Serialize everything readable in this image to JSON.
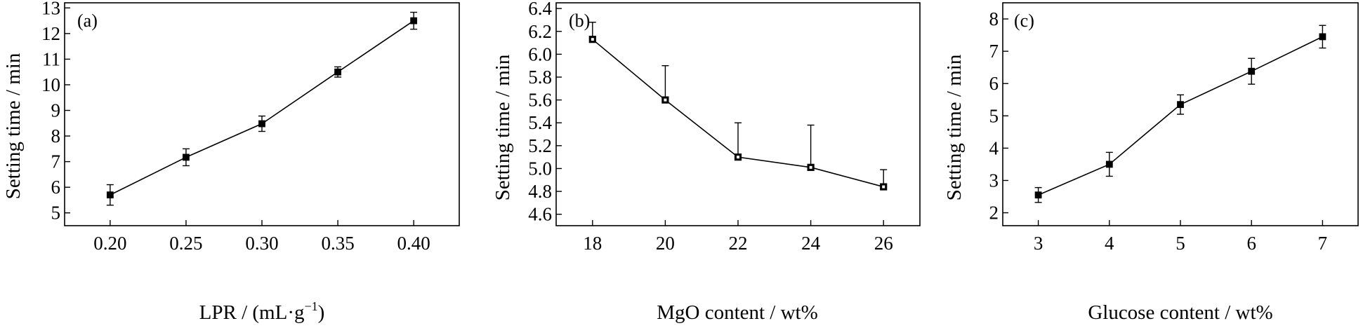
{
  "chart_data": [
    {
      "type": "line",
      "panel_label": "(a)",
      "xlabel": "LPR / (mL·g",
      "xlabel_sup": "−1",
      "xlabel_close": ")",
      "ylabel": "Setting time / min",
      "xlim": [
        0.17,
        0.43
      ],
      "ylim": [
        4.5,
        13.2
      ],
      "xticks": [
        0.2,
        0.25,
        0.3,
        0.35,
        0.4
      ],
      "xtick_labels": [
        "0.20",
        "0.25",
        "0.30",
        "0.35",
        "0.40"
      ],
      "yticks": [
        5,
        6,
        7,
        8,
        9,
        10,
        11,
        12,
        13
      ],
      "ytick_labels": [
        "5",
        "6",
        "7",
        "8",
        "9",
        "10",
        "11",
        "12",
        "13"
      ],
      "x": [
        0.2,
        0.25,
        0.3,
        0.35,
        0.4
      ],
      "y": [
        5.7,
        7.17,
        8.48,
        10.5,
        12.5
      ],
      "error_upper": [
        0.4,
        0.33,
        0.3,
        0.2,
        0.33
      ],
      "error_lower": [
        0.4,
        0.33,
        0.3,
        0.2,
        0.33
      ],
      "marker": "filled-square",
      "grid": false
    },
    {
      "type": "line",
      "panel_label": "(b)",
      "xlabel": "MgO content / wt%",
      "ylabel": "Setting time / min",
      "xlim": [
        17,
        27
      ],
      "ylim": [
        4.5,
        6.45
      ],
      "xticks": [
        18,
        20,
        22,
        24,
        26
      ],
      "xtick_labels": [
        "18",
        "20",
        "22",
        "24",
        "26"
      ],
      "yticks": [
        4.6,
        4.8,
        5.0,
        5.2,
        5.4,
        5.6,
        5.8,
        6.0,
        6.2,
        6.4
      ],
      "ytick_labels": [
        "4.6",
        "4.8",
        "5.0",
        "5.2",
        "5.4",
        "5.6",
        "5.8",
        "6.0",
        "6.2",
        "6.4"
      ],
      "x": [
        18,
        20,
        22,
        24,
        26
      ],
      "y": [
        6.13,
        5.6,
        5.1,
        5.01,
        4.84
      ],
      "error_upper": [
        0.15,
        0.3,
        0.3,
        0.37,
        0.15
      ],
      "error_lower": [
        0,
        0,
        0,
        0,
        0
      ],
      "marker": "open-square",
      "grid": false
    },
    {
      "type": "line",
      "panel_label": "(c)",
      "xlabel": "Glucose content / wt%",
      "ylabel": "Setting time / min",
      "xlim": [
        2.5,
        7.5
      ],
      "ylim": [
        1.6,
        8.5
      ],
      "xticks": [
        3,
        4,
        5,
        6,
        7
      ],
      "xtick_labels": [
        "3",
        "4",
        "5",
        "6",
        "7"
      ],
      "yticks": [
        2,
        3,
        4,
        5,
        6,
        7,
        8
      ],
      "ytick_labels": [
        "2",
        "3",
        "4",
        "5",
        "6",
        "7",
        "8"
      ],
      "x": [
        3,
        4,
        5,
        6,
        7
      ],
      "y": [
        2.55,
        3.5,
        5.35,
        6.38,
        7.45
      ],
      "error_upper": [
        0.23,
        0.37,
        0.3,
        0.4,
        0.35
      ],
      "error_lower": [
        0.23,
        0.37,
        0.3,
        0.4,
        0.35
      ],
      "marker": "filled-square",
      "grid": false
    }
  ]
}
